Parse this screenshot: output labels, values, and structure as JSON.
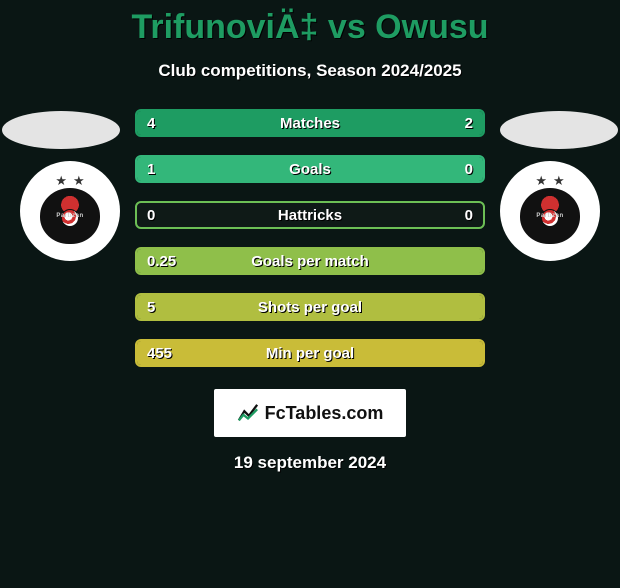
{
  "title": "TrifunoviÄ‡ vs Owusu",
  "subtitle": "Club competitions, Season 2024/2025",
  "date": "19 september 2024",
  "site_label": "FcTables.com",
  "players": {
    "left": {
      "club": "Partizan"
    },
    "right": {
      "club": "Partizan"
    }
  },
  "row_colors": {
    "matches": "#1e9c62",
    "goals": "#33b77a",
    "hattricks": "#6cbf55",
    "gpm": "#8fbf4a",
    "spg": "#b0be40",
    "mpg": "#c9bc38"
  },
  "background_color": "#0a1614",
  "bar_track_color": "#0f1a17",
  "text_color": "#ffffff",
  "title_color": "#1e9c62",
  "rows": [
    {
      "key": "matches",
      "label": "Matches",
      "left": "4",
      "right": "2",
      "left_pct": 66.7,
      "right_pct": 33.3
    },
    {
      "key": "goals",
      "label": "Goals",
      "left": "1",
      "right": "0",
      "left_pct": 100,
      "right_pct": 0
    },
    {
      "key": "hattricks",
      "label": "Hattricks",
      "left": "0",
      "right": "0",
      "left_pct": 0,
      "right_pct": 0
    },
    {
      "key": "gpm",
      "label": "Goals per match",
      "left": "0.25",
      "right": "",
      "left_pct": 100,
      "right_pct": 0
    },
    {
      "key": "spg",
      "label": "Shots per goal",
      "left": "5",
      "right": "",
      "left_pct": 100,
      "right_pct": 0
    },
    {
      "key": "mpg",
      "label": "Min per goal",
      "left": "455",
      "right": "",
      "left_pct": 100,
      "right_pct": 0
    }
  ]
}
